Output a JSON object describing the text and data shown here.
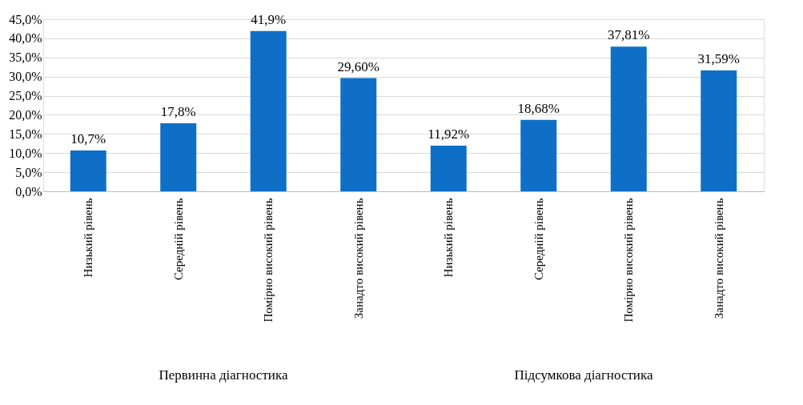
{
  "chart_data": {
    "type": "bar",
    "categories": [
      "Низький рівень",
      "Середній рівень",
      "Помірно високий рівень",
      "Занадто високий рівень",
      "Низький рівень",
      "Середній рівень",
      "Помірно високий рівень",
      "Занадто високий рівень"
    ],
    "values": [
      10.7,
      17.8,
      41.9,
      29.6,
      11.92,
      18.68,
      37.81,
      31.59
    ],
    "value_labels": [
      "10,7%",
      "17,8%",
      "41,9%",
      "29,60%",
      "11,92%",
      "18,68%",
      "37,81%",
      "31,59%"
    ],
    "color": "#0f6fc6",
    "ylim": [
      0,
      45
    ],
    "yticks": [
      {
        "value": 0,
        "label": "0,0%"
      },
      {
        "value": 5,
        "label": "5,0%"
      },
      {
        "value": 10,
        "label": "10,0%"
      },
      {
        "value": 15,
        "label": "15,0%"
      },
      {
        "value": 20,
        "label": "20,0%"
      },
      {
        "value": 25,
        "label": "25,0%"
      },
      {
        "value": 30,
        "label": "30,0%"
      },
      {
        "value": 35,
        "label": "35,0%"
      },
      {
        "value": 40,
        "label": "40,0%"
      },
      {
        "value": 45,
        "label": "45,0%"
      }
    ],
    "grid": "y",
    "annotations": [
      "Первинна діагностика",
      "Підсумкова діагностика"
    ]
  }
}
